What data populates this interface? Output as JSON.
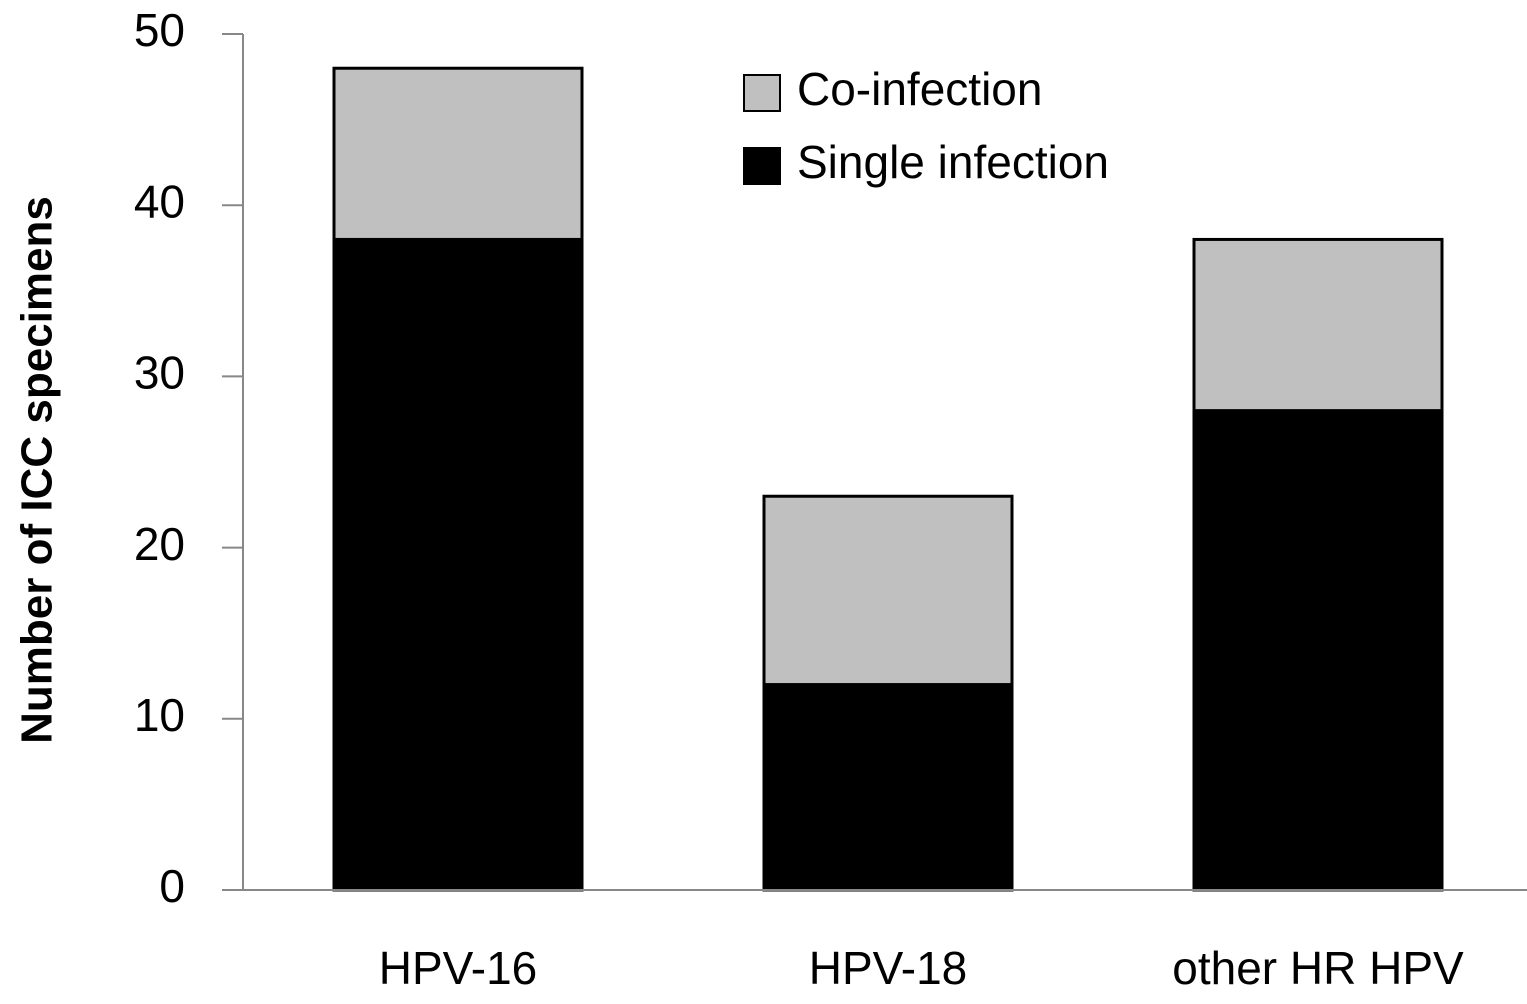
{
  "chart_data": {
    "type": "stacked_bar",
    "y_label": "Number of ICC specimens",
    "categories": [
      "HPV-16",
      "HPV-18",
      "other HR HPV"
    ],
    "series": [
      {
        "name": "Single infection",
        "color": "#000000",
        "values": [
          38,
          12,
          28
        ]
      },
      {
        "name": "Co-infection",
        "color": "#c0c0c0",
        "values": [
          10,
          11,
          10
        ]
      }
    ],
    "ylim": [
      0,
      50
    ],
    "yticks": [
      0,
      10,
      20,
      30,
      40,
      50
    ],
    "legend": "top-right"
  }
}
